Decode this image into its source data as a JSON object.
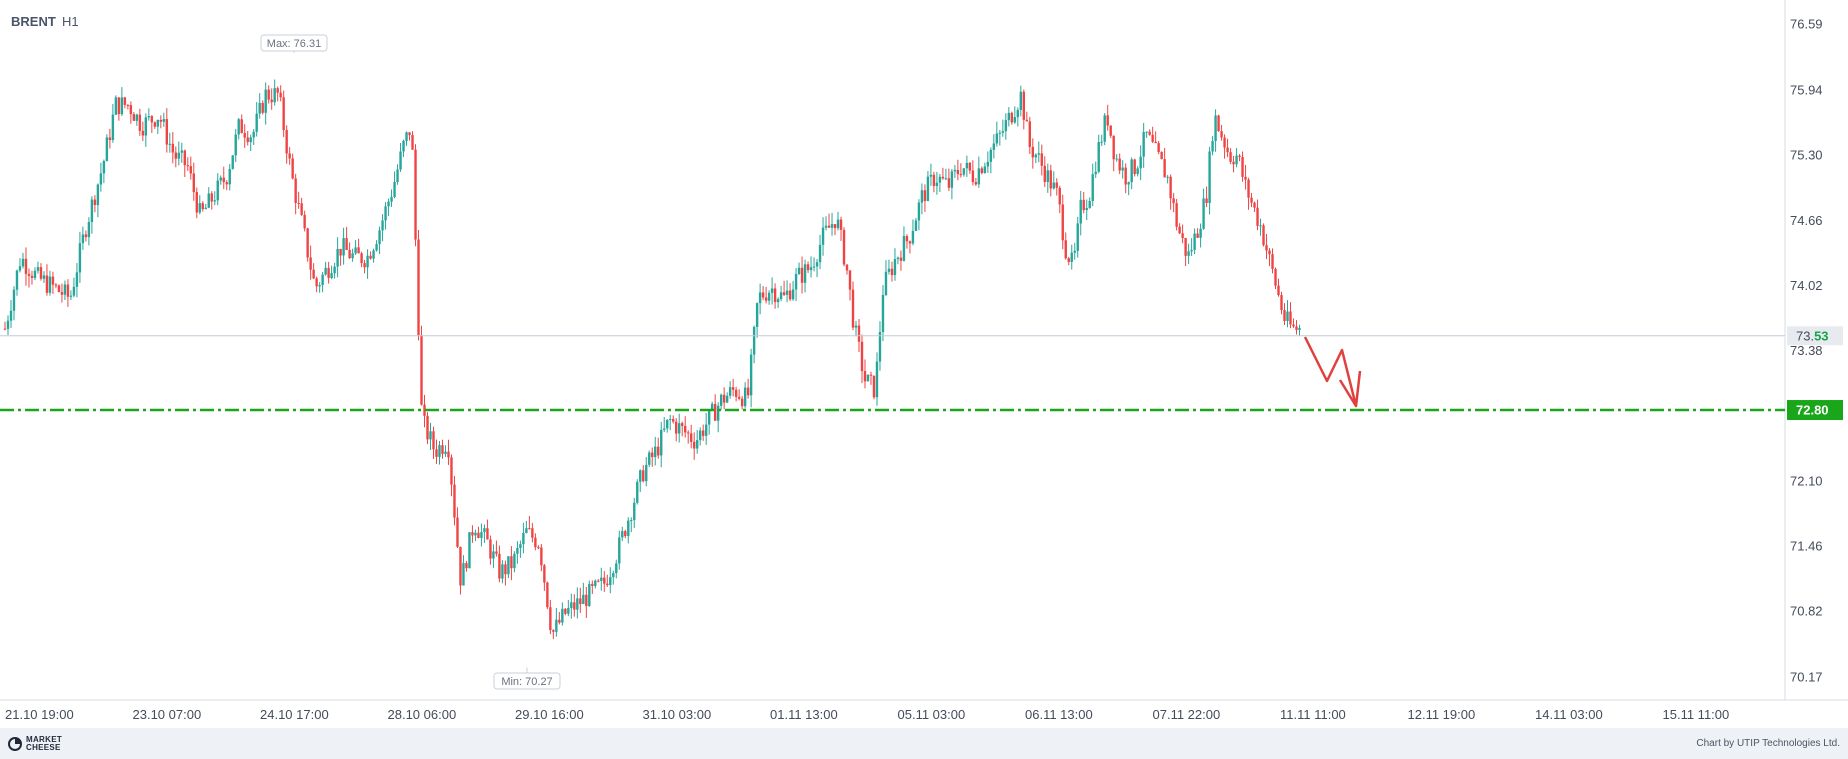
{
  "header": {
    "symbol": "BRENT",
    "timeframe": "H1"
  },
  "chart_data": {
    "type": "candlestick",
    "ylim": [
      69.95,
      76.83
    ],
    "y_ticks": [
      "76.59",
      "75.94",
      "75.30",
      "74.66",
      "74.02",
      "73.38",
      "72.10",
      "71.46",
      "70.82",
      "70.17"
    ],
    "x_ticks": [
      "21.10 19:00",
      "23.10 07:00",
      "24.10 17:00",
      "28.10 06:00",
      "29.10 16:00",
      "31.10 03:00",
      "01.11 13:00",
      "05.11 03:00",
      "06.11 13:00",
      "07.11 22:00",
      "11.11 11:00",
      "12.11 19:00",
      "14.11 03:00",
      "15.11 11:00"
    ],
    "max_label": "Max: 76.31",
    "min_label": "Min: 70.27",
    "max_value": 76.31,
    "min_value": 70.27,
    "current_price": {
      "value": 73.53,
      "label_main": "73.",
      "label_accent": "53"
    },
    "target_level": {
      "value": 72.8,
      "label": "72.80"
    },
    "price_path": [
      [
        0,
        73.6
      ],
      [
        12,
        74.3
      ],
      [
        25,
        74.1
      ],
      [
        38,
        74.0
      ],
      [
        50,
        73.9
      ],
      [
        62,
        74.6
      ],
      [
        75,
        75.2
      ],
      [
        85,
        75.8
      ],
      [
        95,
        75.8
      ],
      [
        105,
        75.6
      ],
      [
        118,
        75.7
      ],
      [
        130,
        75.3
      ],
      [
        140,
        75.2
      ],
      [
        150,
        74.7
      ],
      [
        160,
        74.9
      ],
      [
        170,
        75.1
      ],
      [
        180,
        75.6
      ],
      [
        190,
        75.5
      ],
      [
        200,
        75.9
      ],
      [
        210,
        75.9
      ],
      [
        220,
        75.1
      ],
      [
        230,
        74.5
      ],
      [
        238,
        74.0
      ],
      [
        248,
        74.2
      ],
      [
        258,
        74.4
      ],
      [
        268,
        74.3
      ],
      [
        278,
        74.3
      ],
      [
        288,
        74.6
      ],
      [
        298,
        75.0
      ],
      [
        306,
        75.4
      ],
      [
        312,
        75.6
      ],
      [
        320,
        72.7
      ],
      [
        330,
        72.4
      ],
      [
        340,
        72.5
      ],
      [
        350,
        71.1
      ],
      [
        360,
        71.7
      ],
      [
        370,
        71.5
      ],
      [
        380,
        71.2
      ],
      [
        390,
        71.3
      ],
      [
        400,
        71.6
      ],
      [
        410,
        71.5
      ],
      [
        420,
        70.6
      ],
      [
        430,
        70.8
      ],
      [
        440,
        70.9
      ],
      [
        450,
        71.0
      ],
      [
        460,
        71.1
      ],
      [
        470,
        71.4
      ],
      [
        480,
        71.8
      ],
      [
        490,
        72.2
      ],
      [
        500,
        72.4
      ],
      [
        510,
        72.7
      ],
      [
        520,
        72.6
      ],
      [
        530,
        72.5
      ],
      [
        540,
        72.7
      ],
      [
        550,
        72.9
      ],
      [
        560,
        73.0
      ],
      [
        570,
        72.9
      ],
      [
        578,
        73.9
      ],
      [
        588,
        74.0
      ],
      [
        598,
        73.9
      ],
      [
        608,
        74.1
      ],
      [
        618,
        74.2
      ],
      [
        628,
        74.5
      ],
      [
        638,
        74.7
      ],
      [
        646,
        74.2
      ],
      [
        652,
        73.6
      ],
      [
        660,
        73.1
      ],
      [
        668,
        73.0
      ],
      [
        674,
        74.0
      ],
      [
        684,
        74.3
      ],
      [
        694,
        74.5
      ],
      [
        704,
        74.9
      ],
      [
        714,
        75.1
      ],
      [
        724,
        75.0
      ],
      [
        734,
        75.2
      ],
      [
        744,
        75.1
      ],
      [
        754,
        75.3
      ],
      [
        764,
        75.5
      ],
      [
        772,
        75.7
      ],
      [
        780,
        75.9
      ],
      [
        786,
        75.4
      ],
      [
        792,
        75.3
      ],
      [
        800,
        75.1
      ],
      [
        808,
        74.9
      ],
      [
        814,
        74.4
      ],
      [
        820,
        74.2
      ],
      [
        826,
        74.8
      ],
      [
        832,
        74.9
      ],
      [
        838,
        75.3
      ],
      [
        846,
        75.7
      ],
      [
        852,
        75.3
      ],
      [
        860,
        75.1
      ],
      [
        868,
        75.2
      ],
      [
        876,
        75.5
      ],
      [
        884,
        75.3
      ],
      [
        892,
        75.1
      ],
      [
        900,
        74.6
      ],
      [
        908,
        74.3
      ],
      [
        916,
        74.6
      ],
      [
        922,
        74.9
      ],
      [
        928,
        75.7
      ],
      [
        934,
        75.5
      ],
      [
        940,
        75.3
      ],
      [
        946,
        75.3
      ],
      [
        952,
        75.0
      ],
      [
        958,
        74.8
      ],
      [
        964,
        74.6
      ],
      [
        970,
        74.3
      ],
      [
        976,
        74.0
      ],
      [
        982,
        73.7
      ],
      [
        988,
        73.6
      ],
      [
        994,
        73.6
      ]
    ]
  },
  "footer": {
    "logo_line1": "MARKET",
    "logo_line2": "CHEESE",
    "credit": "Chart by UTIP Technologies Ltd."
  }
}
